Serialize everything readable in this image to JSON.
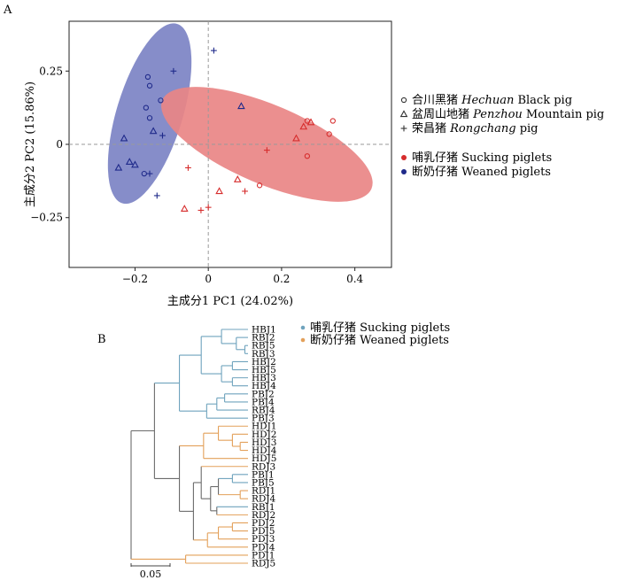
{
  "panel_labels": {
    "a": "A",
    "b": "B"
  },
  "colors": {
    "sucking": "#d62c2c",
    "weaned": "#1f2a8a",
    "ellipse_sucking": "#e98686",
    "ellipse_weaned": "#7c83c4",
    "tree_sucking": "#6fa3bd",
    "tree_weaned": "#e3a05a",
    "tree_inner": "#6b6b6b"
  },
  "chart_data": [
    {
      "type": "scatter",
      "title": "",
      "xlabel": "主成分1 PC1 (24.02%)",
      "ylabel": "主成分2 PC2 (15.86%)",
      "xlim": [
        -0.38,
        0.5
      ],
      "ylim": [
        -0.42,
        0.42
      ],
      "xticks": [
        -0.2,
        0,
        0.2,
        0.4
      ],
      "xtick_labels": [
        "−0.2",
        "0",
        "0.2",
        "0.4"
      ],
      "yticks": [
        -0.25,
        0,
        0.25
      ],
      "ytick_labels": [
        "−0.25",
        "0",
        "0.25"
      ],
      "grid": false,
      "reference_lines": {
        "x": 0,
        "y": 0
      },
      "legend": {
        "position": "right",
        "breeds": [
          {
            "marker": "circle",
            "cn": "合川黑猪",
            "en_italic": "Hechuan",
            "en": " Black pig"
          },
          {
            "marker": "triangle",
            "cn": "盆周山地猪",
            "en_italic": "Penzhou",
            "en": " Mountain pig"
          },
          {
            "marker": "plus",
            "cn": "荣昌猪",
            "en_italic": "Rongchang",
            "en": " pig"
          }
        ],
        "groups": [
          {
            "key": "sucking",
            "cn": "哺乳仔猪",
            "en": " Sucking piglets"
          },
          {
            "key": "weaned",
            "cn": "断奶仔猪",
            "en": " Weaned piglets"
          }
        ]
      },
      "ellipses": [
        {
          "group": "weaned",
          "center": [
            -0.16,
            0.105
          ],
          "semi_axes": [
            0.09,
            0.32
          ],
          "tilt_deg": 17
        },
        {
          "group": "sucking",
          "center": [
            0.16,
            0.0
          ],
          "semi_axes": [
            0.31,
            0.135
          ],
          "tilt_deg": 23
        }
      ],
      "points": [
        {
          "group": "weaned",
          "marker": "circle",
          "x": -0.165,
          "y": 0.23
        },
        {
          "group": "weaned",
          "marker": "circle",
          "x": -0.16,
          "y": 0.2
        },
        {
          "group": "weaned",
          "marker": "circle",
          "x": -0.13,
          "y": 0.15
        },
        {
          "group": "weaned",
          "marker": "circle",
          "x": -0.17,
          "y": 0.125
        },
        {
          "group": "weaned",
          "marker": "circle",
          "x": -0.16,
          "y": 0.09
        },
        {
          "group": "weaned",
          "marker": "circle",
          "x": -0.175,
          "y": -0.1
        },
        {
          "group": "weaned",
          "marker": "triangle",
          "x": -0.23,
          "y": 0.02
        },
        {
          "group": "weaned",
          "marker": "triangle",
          "x": -0.2,
          "y": -0.07
        },
        {
          "group": "weaned",
          "marker": "triangle",
          "x": -0.215,
          "y": -0.06
        },
        {
          "group": "weaned",
          "marker": "triangle",
          "x": -0.245,
          "y": -0.08
        },
        {
          "group": "weaned",
          "marker": "triangle",
          "x": -0.15,
          "y": 0.045
        },
        {
          "group": "weaned",
          "marker": "triangle",
          "x": 0.09,
          "y": 0.13
        },
        {
          "group": "weaned",
          "marker": "plus",
          "x": 0.015,
          "y": 0.32
        },
        {
          "group": "weaned",
          "marker": "plus",
          "x": -0.095,
          "y": 0.25
        },
        {
          "group": "weaned",
          "marker": "plus",
          "x": -0.125,
          "y": 0.03
        },
        {
          "group": "weaned",
          "marker": "plus",
          "x": -0.16,
          "y": -0.1
        },
        {
          "group": "weaned",
          "marker": "plus",
          "x": -0.14,
          "y": -0.175
        },
        {
          "group": "sucking",
          "marker": "circle",
          "x": 0.27,
          "y": 0.08
        },
        {
          "group": "sucking",
          "marker": "circle",
          "x": 0.34,
          "y": 0.08
        },
        {
          "group": "sucking",
          "marker": "circle",
          "x": 0.33,
          "y": 0.035
        },
        {
          "group": "sucking",
          "marker": "circle",
          "x": 0.27,
          "y": -0.04
        },
        {
          "group": "sucking",
          "marker": "circle",
          "x": 0.14,
          "y": -0.14
        },
        {
          "group": "sucking",
          "marker": "triangle",
          "x": 0.26,
          "y": 0.06
        },
        {
          "group": "sucking",
          "marker": "triangle",
          "x": 0.28,
          "y": 0.075
        },
        {
          "group": "sucking",
          "marker": "triangle",
          "x": 0.24,
          "y": 0.02
        },
        {
          "group": "sucking",
          "marker": "triangle",
          "x": 0.08,
          "y": -0.12
        },
        {
          "group": "sucking",
          "marker": "triangle",
          "x": 0.03,
          "y": -0.16
        },
        {
          "group": "sucking",
          "marker": "triangle",
          "x": -0.065,
          "y": -0.22
        },
        {
          "group": "sucking",
          "marker": "plus",
          "x": 0.16,
          "y": -0.02
        },
        {
          "group": "sucking",
          "marker": "plus",
          "x": -0.055,
          "y": -0.08
        },
        {
          "group": "sucking",
          "marker": "plus",
          "x": 0.1,
          "y": -0.16
        },
        {
          "group": "sucking",
          "marker": "plus",
          "x": 0.0,
          "y": -0.215
        },
        {
          "group": "sucking",
          "marker": "plus",
          "x": -0.02,
          "y": -0.225
        }
      ]
    },
    {
      "type": "dendrogram",
      "title": "",
      "scale_label": "0.05",
      "scale_length": 0.05,
      "legend": {
        "position": "top-right",
        "entries": [
          {
            "key": "sucking",
            "cn": "哺乳仔猪",
            "en": " Sucking piglets"
          },
          {
            "key": "weaned",
            "cn": "断奶仔猪",
            "en": " Weaned piglets"
          }
        ]
      },
      "leaves": [
        {
          "name": "HBJ1",
          "group": "sucking"
        },
        {
          "name": "RBJ2",
          "group": "sucking"
        },
        {
          "name": "RBJ5",
          "group": "sucking"
        },
        {
          "name": "RBJ3",
          "group": "sucking"
        },
        {
          "name": "HBJ2",
          "group": "sucking"
        },
        {
          "name": "HBJ5",
          "group": "sucking"
        },
        {
          "name": "HBJ3",
          "group": "sucking"
        },
        {
          "name": "HBJ4",
          "group": "sucking"
        },
        {
          "name": "PBJ2",
          "group": "sucking"
        },
        {
          "name": "PBJ4",
          "group": "sucking"
        },
        {
          "name": "RBJ4",
          "group": "sucking"
        },
        {
          "name": "PBJ3",
          "group": "sucking"
        },
        {
          "name": "HDJ1",
          "group": "weaned"
        },
        {
          "name": "HDJ2",
          "group": "weaned"
        },
        {
          "name": "HDJ3",
          "group": "weaned"
        },
        {
          "name": "HDJ4",
          "group": "weaned"
        },
        {
          "name": "HDJ5",
          "group": "weaned"
        },
        {
          "name": "RDJ3",
          "group": "weaned"
        },
        {
          "name": "PBJ1",
          "group": "sucking"
        },
        {
          "name": "PBJ5",
          "group": "sucking"
        },
        {
          "name": "RDJ1",
          "group": "weaned"
        },
        {
          "name": "RDJ4",
          "group": "weaned"
        },
        {
          "name": "RBJ1",
          "group": "sucking"
        },
        {
          "name": "RDJ2",
          "group": "weaned"
        },
        {
          "name": "PDJ2",
          "group": "weaned"
        },
        {
          "name": "PDJ5",
          "group": "weaned"
        },
        {
          "name": "PDJ3",
          "group": "weaned"
        },
        {
          "name": "PDJ4",
          "group": "weaned"
        },
        {
          "name": "PDJ1",
          "group": "weaned"
        },
        {
          "name": "RDJ5",
          "group": "weaned"
        }
      ],
      "tree": {
        "h": 0.0,
        "children": [
          {
            "h": 0.03,
            "children": [
              {
                "h": 0.062,
                "children": [
                  {
                    "h": 0.09,
                    "children": [
                      {
                        "h": 0.116,
                        "children": [
                          {
                            "leaf": 0
                          },
                          {
                            "h": 0.135,
                            "children": [
                              {
                                "leaf": 1
                              },
                              {
                                "h": 0.146,
                                "children": [
                                  {
                                    "leaf": 2
                                  },
                                  {
                                    "leaf": 3
                                  }
                                ]
                              }
                            ]
                          }
                        ]
                      },
                      {
                        "h": 0.116,
                        "children": [
                          {
                            "h": 0.13,
                            "children": [
                              {
                                "leaf": 4
                              },
                              {
                                "leaf": 5
                              }
                            ]
                          },
                          {
                            "h": 0.13,
                            "children": [
                              {
                                "leaf": 6
                              },
                              {
                                "leaf": 7
                              }
                            ]
                          }
                        ]
                      }
                    ]
                  },
                  {
                    "h": 0.097,
                    "children": [
                      {
                        "h": 0.11,
                        "children": [
                          {
                            "h": 0.12,
                            "children": [
                              {
                                "leaf": 8
                              },
                              {
                                "leaf": 9
                              }
                            ]
                          },
                          {
                            "leaf": 10
                          }
                        ]
                      },
                      {
                        "leaf": 11
                      }
                    ]
                  }
                ]
              },
              {
                "h": 0.062,
                "children": [
                  {
                    "h": 0.093,
                    "children": [
                      {
                        "h": 0.112,
                        "children": [
                          {
                            "leaf": 12
                          },
                          {
                            "h": 0.13,
                            "children": [
                              {
                                "leaf": 13
                              },
                              {
                                "h": 0.14,
                                "children": [
                                  {
                                    "leaf": 14
                                  },
                                  {
                                    "leaf": 15
                                  }
                                ]
                              }
                            ]
                          }
                        ]
                      },
                      {
                        "leaf": 16
                      }
                    ]
                  },
                  {
                    "h": 0.08,
                    "children": [
                      {
                        "h": 0.09,
                        "children": [
                          {
                            "leaf": 17
                          },
                          {
                            "h": 0.102,
                            "children": [
                              {
                                "h": 0.112,
                                "children": [
                                  {
                                    "h": 0.13,
                                    "children": [
                                      {
                                        "leaf": 18
                                      },
                                      {
                                        "leaf": 19
                                      }
                                    ]
                                  },
                                  {
                                    "h": 0.14,
                                    "children": [
                                      {
                                        "leaf": 20
                                      },
                                      {
                                        "leaf": 21
                                      }
                                    ]
                                  }
                                ]
                              },
                              {
                                "h": 0.11,
                                "children": [
                                  {
                                    "leaf": 22
                                  },
                                  {
                                    "leaf": 23
                                  }
                                ]
                              }
                            ]
                          }
                        ]
                      },
                      {
                        "h": 0.098,
                        "children": [
                          {
                            "h": 0.112,
                            "children": [
                              {
                                "h": 0.13,
                                "children": [
                                  {
                                    "leaf": 24
                                  },
                                  {
                                    "leaf": 25
                                  }
                                ]
                              },
                              {
                                "leaf": 26
                              }
                            ]
                          },
                          {
                            "leaf": 27
                          }
                        ]
                      }
                    ]
                  }
                ]
              }
            ]
          },
          {
            "h": 0.07,
            "children": [
              {
                "leaf": 28
              },
              {
                "leaf": 29
              }
            ]
          }
        ]
      }
    }
  ]
}
